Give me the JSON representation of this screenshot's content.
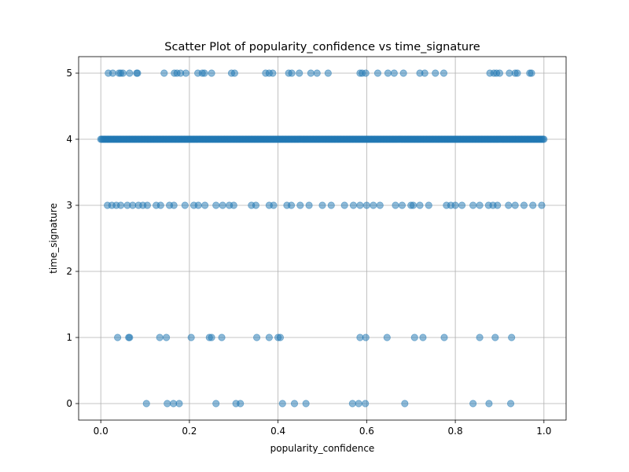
{
  "chart_data": {
    "type": "scatter",
    "title": "Scatter Plot of popularity_confidence vs time_signature",
    "xlabel": "popularity_confidence",
    "ylabel": "time_signature",
    "xlim": [
      -0.05,
      1.05
    ],
    "ylim": [
      -0.25,
      5.25
    ],
    "xticks": [
      0.0,
      0.2,
      0.4,
      0.6,
      0.8,
      1.0
    ],
    "xtick_labels": [
      "0.0",
      "0.2",
      "0.4",
      "0.6",
      "0.8",
      "1.0"
    ],
    "yticks": [
      0,
      1,
      2,
      3,
      4,
      5
    ],
    "ytick_labels": [
      "0",
      "1",
      "2",
      "3",
      "4",
      "5"
    ],
    "grid": true,
    "marker_color": "#1f77b4",
    "marker_alpha": 0.5,
    "series": [
      {
        "points": [
          [
            0.017,
            5
          ],
          [
            0.027,
            5
          ],
          [
            0.041,
            5
          ],
          [
            0.045,
            5
          ],
          [
            0.05,
            5
          ],
          [
            0.065,
            5
          ],
          [
            0.081,
            5
          ],
          [
            0.083,
            5
          ],
          [
            0.143,
            5
          ],
          [
            0.166,
            5
          ],
          [
            0.172,
            5
          ],
          [
            0.18,
            5
          ],
          [
            0.192,
            5
          ],
          [
            0.219,
            5
          ],
          [
            0.229,
            5
          ],
          [
            0.234,
            5
          ],
          [
            0.25,
            5
          ],
          [
            0.295,
            5
          ],
          [
            0.302,
            5
          ],
          [
            0.372,
            5
          ],
          [
            0.38,
            5
          ],
          [
            0.388,
            5
          ],
          [
            0.424,
            5
          ],
          [
            0.431,
            5
          ],
          [
            0.448,
            5
          ],
          [
            0.474,
            5
          ],
          [
            0.488,
            5
          ],
          [
            0.513,
            5
          ],
          [
            0.585,
            5
          ],
          [
            0.59,
            5
          ],
          [
            0.598,
            5
          ],
          [
            0.625,
            5
          ],
          [
            0.648,
            5
          ],
          [
            0.662,
            5
          ],
          [
            0.683,
            5
          ],
          [
            0.72,
            5
          ],
          [
            0.731,
            5
          ],
          [
            0.755,
            5
          ],
          [
            0.774,
            5
          ],
          [
            0.878,
            5
          ],
          [
            0.887,
            5
          ],
          [
            0.893,
            5
          ],
          [
            0.9,
            5
          ],
          [
            0.922,
            5
          ],
          [
            0.935,
            5
          ],
          [
            0.94,
            5
          ],
          [
            0.968,
            5
          ],
          [
            0.972,
            5
          ],
          [
            0.015,
            3
          ],
          [
            0.025,
            3
          ],
          [
            0.035,
            3
          ],
          [
            0.045,
            3
          ],
          [
            0.06,
            3
          ],
          [
            0.072,
            3
          ],
          [
            0.085,
            3
          ],
          [
            0.095,
            3
          ],
          [
            0.105,
            3
          ],
          [
            0.125,
            3
          ],
          [
            0.135,
            3
          ],
          [
            0.155,
            3
          ],
          [
            0.165,
            3
          ],
          [
            0.19,
            3
          ],
          [
            0.21,
            3
          ],
          [
            0.22,
            3
          ],
          [
            0.235,
            3
          ],
          [
            0.26,
            3
          ],
          [
            0.275,
            3
          ],
          [
            0.29,
            3
          ],
          [
            0.3,
            3
          ],
          [
            0.34,
            3
          ],
          [
            0.35,
            3
          ],
          [
            0.38,
            3
          ],
          [
            0.39,
            3
          ],
          [
            0.42,
            3
          ],
          [
            0.43,
            3
          ],
          [
            0.45,
            3
          ],
          [
            0.47,
            3
          ],
          [
            0.5,
            3
          ],
          [
            0.52,
            3
          ],
          [
            0.55,
            3
          ],
          [
            0.57,
            3
          ],
          [
            0.585,
            3
          ],
          [
            0.6,
            3
          ],
          [
            0.615,
            3
          ],
          [
            0.63,
            3
          ],
          [
            0.665,
            3
          ],
          [
            0.68,
            3
          ],
          [
            0.7,
            3
          ],
          [
            0.705,
            3
          ],
          [
            0.72,
            3
          ],
          [
            0.74,
            3
          ],
          [
            0.78,
            3
          ],
          [
            0.79,
            3
          ],
          [
            0.8,
            3
          ],
          [
            0.815,
            3
          ],
          [
            0.84,
            3
          ],
          [
            0.855,
            3
          ],
          [
            0.875,
            3
          ],
          [
            0.885,
            3
          ],
          [
            0.895,
            3
          ],
          [
            0.92,
            3
          ],
          [
            0.935,
            3
          ],
          [
            0.955,
            3
          ],
          [
            0.975,
            3
          ],
          [
            0.995,
            3
          ],
          [
            0.038,
            1
          ],
          [
            0.063,
            1
          ],
          [
            0.065,
            1
          ],
          [
            0.133,
            1
          ],
          [
            0.148,
            1
          ],
          [
            0.204,
            1
          ],
          [
            0.245,
            1
          ],
          [
            0.25,
            1
          ],
          [
            0.273,
            1
          ],
          [
            0.352,
            1
          ],
          [
            0.38,
            1
          ],
          [
            0.4,
            1
          ],
          [
            0.405,
            1
          ],
          [
            0.585,
            1
          ],
          [
            0.598,
            1
          ],
          [
            0.646,
            1
          ],
          [
            0.708,
            1
          ],
          [
            0.727,
            1
          ],
          [
            0.775,
            1
          ],
          [
            0.855,
            1
          ],
          [
            0.89,
            1
          ],
          [
            0.927,
            1
          ],
          [
            0.103,
            0
          ],
          [
            0.15,
            0
          ],
          [
            0.164,
            0
          ],
          [
            0.177,
            0
          ],
          [
            0.26,
            0
          ],
          [
            0.305,
            0
          ],
          [
            0.315,
            0
          ],
          [
            0.41,
            0
          ],
          [
            0.437,
            0
          ],
          [
            0.463,
            0
          ],
          [
            0.568,
            0
          ],
          [
            0.582,
            0
          ],
          [
            0.597,
            0
          ],
          [
            0.686,
            0
          ],
          [
            0.84,
            0
          ],
          [
            0.876,
            0
          ],
          [
            0.925,
            0
          ]
        ],
        "dense_row": {
          "y": 4,
          "x_start": 0.0,
          "x_end": 1.0,
          "count": 420
        }
      }
    ]
  }
}
